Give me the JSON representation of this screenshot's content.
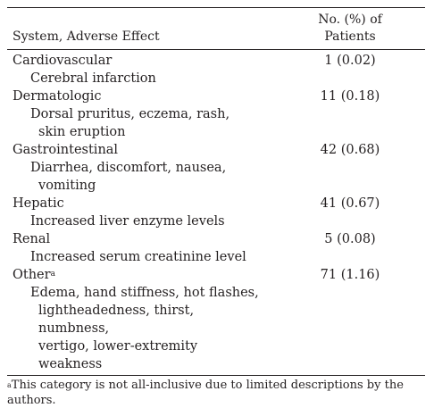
{
  "table": {
    "header": {
      "col1": "System, Adverse Effect",
      "col2_line1": "No. (%) of",
      "col2_line2": "Patients"
    },
    "rows": [
      {
        "system": "Cardiovascular",
        "value": "1 (0.02)",
        "effects": [
          "Cerebral infarction"
        ]
      },
      {
        "system": "Dermatologic",
        "value": "11 (0.18)",
        "effects": [
          "Dorsal pruritus, eczema, rash,",
          "skin eruption"
        ]
      },
      {
        "system": "Gastrointestinal",
        "value": "42 (0.68)",
        "effects": [
          "Diarrhea, discomfort, nausea,",
          "vomiting"
        ]
      },
      {
        "system": "Hepatic",
        "value": "41 (0.67)",
        "effects": [
          "Increased liver enzyme levels"
        ]
      },
      {
        "system": "Renal",
        "value": "5 (0.08)",
        "effects": [
          "Increased serum creatinine level"
        ]
      },
      {
        "system": "Other",
        "system_sup": "a",
        "value": "71 (1.16)",
        "effects": [
          "Edema, hand stiffness, hot flashes,",
          "lightheadedness, thirst, numbness,",
          "vertigo, lower-extremity weakness"
        ]
      }
    ],
    "footnote": {
      "marker": "a",
      "line1": "This category is not all-inclusive due to limited descriptions by the",
      "line2": "authors."
    }
  }
}
